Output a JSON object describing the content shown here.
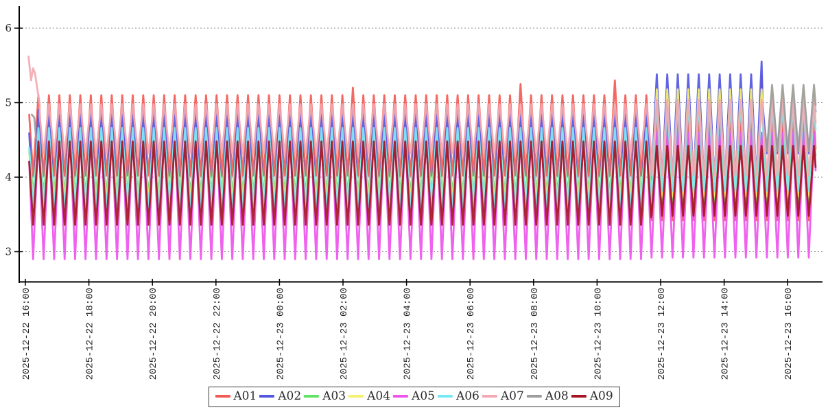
{
  "chart_data": {
    "type": "line",
    "title": "",
    "xlabel": "",
    "ylabel": "",
    "grid": "horizontal-dashed",
    "legend_position": "bottom-center",
    "x_axis": {
      "tick_labels": [
        "2025-12-22 16:00",
        "2025-12-22 18:00",
        "2025-12-22 20:00",
        "2025-12-22 22:00",
        "2025-12-23 00:00",
        "2025-12-23 02:00",
        "2025-12-23 04:00",
        "2025-12-23 06:00",
        "2025-12-23 08:00",
        "2025-12-23 10:00",
        "2025-12-23 12:00",
        "2025-12-23 14:00",
        "2025-12-23 16:00"
      ],
      "tick_hours": [
        0,
        2,
        4,
        6,
        8,
        10,
        12,
        14,
        16,
        18,
        20,
        22,
        24
      ],
      "range_hours": [
        0,
        24.88
      ]
    },
    "y_axis": {
      "ticks": [
        3,
        4,
        5,
        6
      ],
      "range": [
        2.6,
        6.28
      ]
    },
    "oscillation": {
      "period_hours": 0.33,
      "first_peak_hour": 0.41
    },
    "series": [
      {
        "name": "A01",
        "color": "#f45a55",
        "segments": [
          {
            "t": [
              0.12,
              19.7
            ],
            "min": 4.02,
            "max": 5.1
          },
          {
            "t": [
              19.7,
              24.88
            ],
            "min": 3.42,
            "max": 4.8
          }
        ],
        "peak_overrides": [
          [
            10.3,
            5.2
          ],
          [
            15.7,
            5.25
          ],
          [
            18.5,
            5.3
          ],
          [
            23.1,
            5.35
          ]
        ]
      },
      {
        "name": "A02",
        "color": "#5257e1",
        "segments": [
          {
            "t": [
              0.12,
              19.7
            ],
            "min": 3.62,
            "max": 4.9
          },
          {
            "t": [
              19.7,
              23.2
            ],
            "min": 3.95,
            "max": 5.38
          },
          {
            "t": [
              23.2,
              24.88
            ],
            "min": 4.32,
            "max": 5.12
          }
        ],
        "peak_overrides": [
          [
            23.1,
            5.55
          ]
        ]
      },
      {
        "name": "A03",
        "color": "#60e263",
        "segments": [
          {
            "t": [
              0.12,
              19.7
            ],
            "min": 3.78,
            "max": 4.52
          },
          {
            "t": [
              19.7,
              24.88
            ],
            "min": 3.62,
            "max": 4.58
          }
        ]
      },
      {
        "name": "A04",
        "color": "#f6f06d",
        "segments": [
          {
            "t": [
              0.12,
              19.7
            ],
            "min": 3.66,
            "max": 4.6
          },
          {
            "t": [
              19.7,
              24.88
            ],
            "min": 3.74,
            "max": 5.18
          }
        ]
      },
      {
        "name": "A05",
        "color": "#ee55ed",
        "segments": [
          {
            "t": [
              0.12,
              19.7
            ],
            "min": 2.9,
            "max": 4.62
          },
          {
            "t": [
              19.7,
              24.88
            ],
            "min": 2.92,
            "max": 4.6
          }
        ]
      },
      {
        "name": "A06",
        "color": "#76e9f3",
        "segments": [
          {
            "t": [
              0.12,
              19.7
            ],
            "min": 3.56,
            "max": 4.66
          },
          {
            "t": [
              19.7,
              24.88
            ],
            "min": 3.82,
            "max": 4.98
          }
        ]
      },
      {
        "name": "A07",
        "color": "#f3a9b1",
        "intro_points": [
          [
            0.1,
            5.62
          ],
          [
            0.18,
            5.3
          ],
          [
            0.24,
            5.46
          ],
          [
            0.3,
            5.4
          ],
          [
            0.45,
            4.98
          ]
        ],
        "segments": [
          {
            "t": [
              0.45,
              19.7
            ],
            "min": 4.32,
            "max": 4.98
          },
          {
            "t": [
              19.7,
              24.88
            ],
            "min": 4.02,
            "max": 5.04
          }
        ]
      },
      {
        "name": "A08",
        "color": "#9d9d9d",
        "intro_points": [
          [
            0.2,
            4.84
          ],
          [
            0.28,
            4.8
          ],
          [
            0.34,
            4.52
          ]
        ],
        "segments": [
          {
            "t": [
              23.3,
              24.88
            ],
            "min": 4.35,
            "max": 5.24
          }
        ]
      },
      {
        "name": "A09",
        "color": "#a61523",
        "segments": [
          {
            "t": [
              0.12,
              19.7
            ],
            "min": 3.36,
            "max": 4.48
          },
          {
            "t": [
              19.7,
              24.88
            ],
            "min": 3.48,
            "max": 4.42
          }
        ]
      }
    ]
  }
}
